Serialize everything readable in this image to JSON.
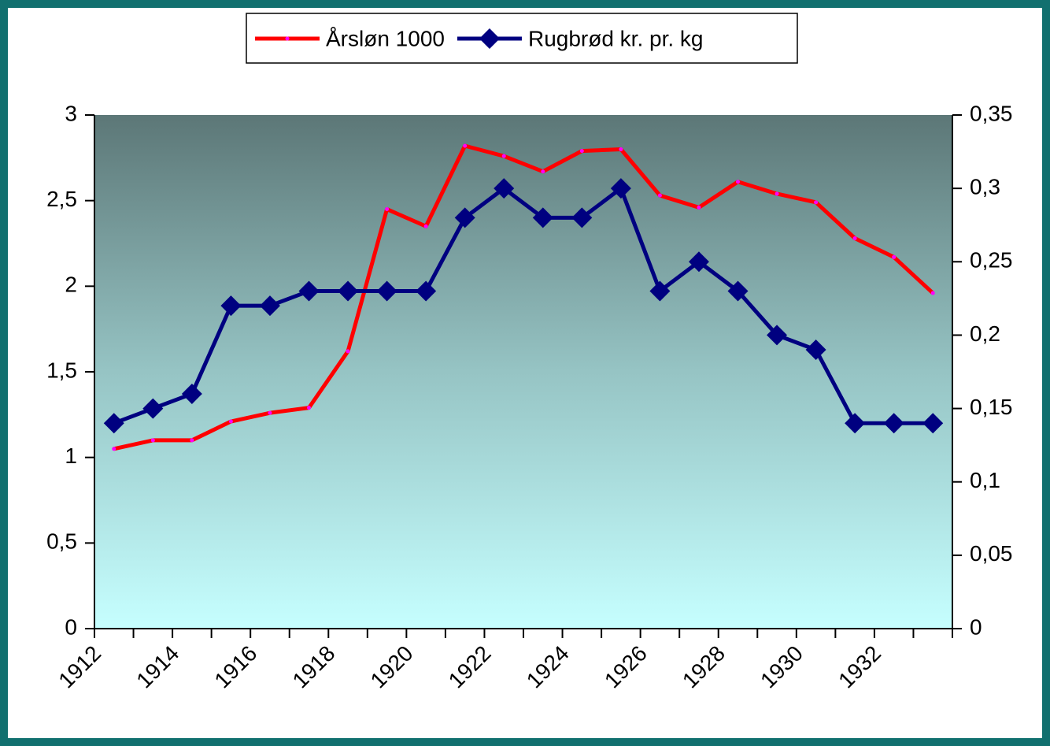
{
  "chart_data": {
    "type": "line",
    "categories": [
      "1912",
      null,
      "1914",
      null,
      "1916",
      null,
      "1918",
      null,
      "1920",
      null,
      "1922",
      null,
      "1924",
      null,
      "1926",
      null,
      "1928",
      null,
      "1930",
      null,
      "1932",
      null
    ],
    "series": [
      {
        "name": "Årsløn 1000",
        "color": "#ff0000",
        "marker": "dot",
        "marker_color": "#ff00ff",
        "axis": "y",
        "values": [
          1.05,
          1.1,
          1.1,
          1.21,
          1.26,
          1.29,
          1.62,
          2.45,
          2.35,
          2.82,
          2.76,
          2.67,
          2.79,
          2.8,
          2.53,
          2.46,
          2.61,
          2.54,
          2.49,
          2.28,
          2.17,
          1.96
        ]
      },
      {
        "name": "Rugbrød kr. pr. kg",
        "color": "#000080",
        "marker": "diamond",
        "marker_color": "#000080",
        "axis": "y2",
        "values": [
          0.14,
          0.15,
          0.16,
          0.22,
          0.22,
          0.23,
          0.23,
          0.23,
          0.23,
          0.28,
          0.3,
          0.28,
          0.28,
          0.3,
          0.23,
          0.25,
          0.23,
          0.2,
          0.19,
          0.14,
          0.14,
          0.14
        ]
      }
    ],
    "ylim": [
      0,
      3
    ],
    "yticks": [
      0,
      {
        "value": 0.5,
        "label": "0,5"
      },
      1,
      {
        "value": 1.5,
        "label": "1,5"
      },
      2,
      {
        "value": 2.5,
        "label": "2,5"
      },
      3
    ],
    "y2lim": [
      0,
      0.35
    ],
    "y2ticks": [
      0,
      {
        "value": 0.05,
        "label": "0,05"
      },
      {
        "value": 0.1,
        "label": "0,1"
      },
      {
        "value": 0.15,
        "label": "0,15"
      },
      {
        "value": 0.2,
        "label": "0,2"
      },
      {
        "value": 0.25,
        "label": "0,25"
      },
      {
        "value": 0.3,
        "label": "0,3"
      },
      {
        "value": 0.35,
        "label": "0,35"
      }
    ],
    "legend": "top",
    "grid": false
  }
}
